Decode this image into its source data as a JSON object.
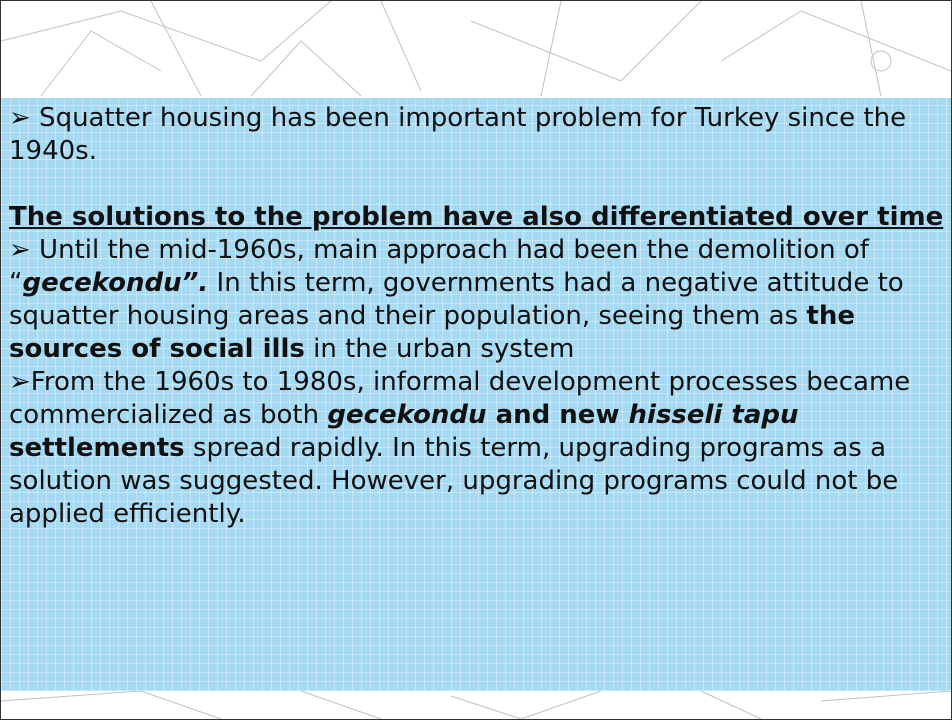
{
  "slide": {
    "paragraphs": [
      {
        "bullet": "➢",
        "runs": [
          {
            "text": " Squatter housing has been important problem for Turkey since the 1940s.",
            "style": "plain"
          }
        ]
      },
      {
        "gap": true,
        "underline": true,
        "runs": [
          {
            "text": "The solutions to the problem have also differentiated over time",
            "style": "bold"
          }
        ]
      },
      {
        "bullet": "➢",
        "runs": [
          {
            "text": " Until the mid-1960s, main approach had been the demolition of “",
            "style": "plain"
          },
          {
            "text": "gecekondu”.",
            "style": "bold-italic"
          },
          {
            "text": " In this term, governments had a negative attitude to squatter housing areas and their population, seeing them as ",
            "style": "plain"
          },
          {
            "text": "the sources of social ills",
            "style": "bold"
          },
          {
            "text": " in the urban system",
            "style": "plain"
          }
        ]
      },
      {
        "bullet": "➢",
        "runs": [
          {
            "text": "From the 1960s to 1980s, informal development processes became commercialized as both ",
            "style": "plain"
          },
          {
            "text": "gecekondu",
            "style": "bold-italic"
          },
          {
            "text": " and new ",
            "style": "bold"
          },
          {
            "text": "hisseli tapu",
            "style": "bold-italic"
          },
          {
            "text": " settlements",
            "style": "bold"
          },
          {
            "text": " spread rapidly. In this term, upgrading programs as a solution was suggested. However, upgrading programs could not be applied efficiently.",
            "style": "plain"
          }
        ]
      }
    ]
  }
}
